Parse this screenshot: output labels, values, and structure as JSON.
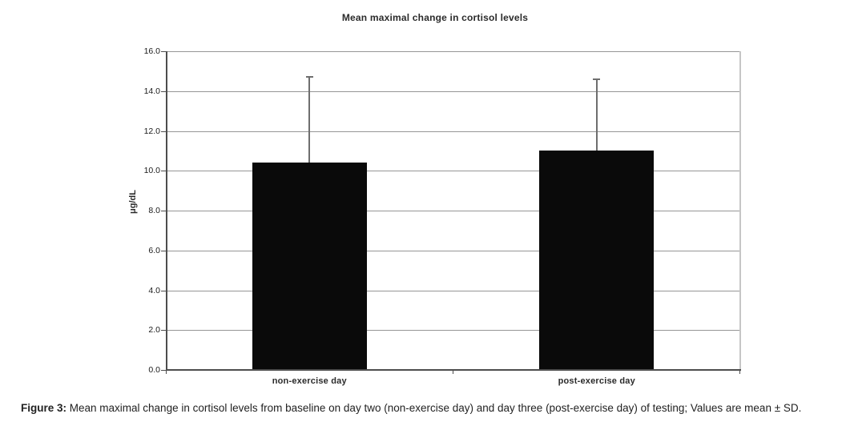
{
  "figure": {
    "caption_label": "Figure 3:",
    "caption_text": " Mean maximal change in cortisol levels from baseline on day two (non-exercise day) and day three (post-exercise day) of testing; Values are mean ± SD."
  },
  "chart_data": {
    "type": "bar",
    "title": "Mean maximal change in cortisol levels",
    "xlabel": "",
    "ylabel": "μg/dL",
    "categories": [
      "non-exercise day",
      "post-exercise day"
    ],
    "series": [
      {
        "name": "mean maximal change in cortisol",
        "values": [
          10.4,
          11.0
        ]
      }
    ],
    "error_bars": {
      "direction": "upper",
      "whisker_tops": [
        14.7,
        14.6
      ],
      "sd_values": [
        4.3,
        3.6
      ]
    },
    "ylim": [
      0,
      16
    ],
    "yticks": [
      0,
      2,
      4,
      6,
      8,
      10,
      12,
      14,
      16
    ],
    "ytick_labels": [
      "0.0",
      "2.0",
      "4.0",
      "6.0",
      "8.0",
      "10.0",
      "12.0",
      "14.0",
      "16.0"
    ],
    "grid": true,
    "legend_position": "none",
    "colors": {
      "bar": "#0a0a0a",
      "gridline": "#969696",
      "axis": "#4d4d4d",
      "plot_border": "#c6c6c6",
      "error_bar": "#6e6e6e",
      "background": "#ffffff"
    }
  }
}
